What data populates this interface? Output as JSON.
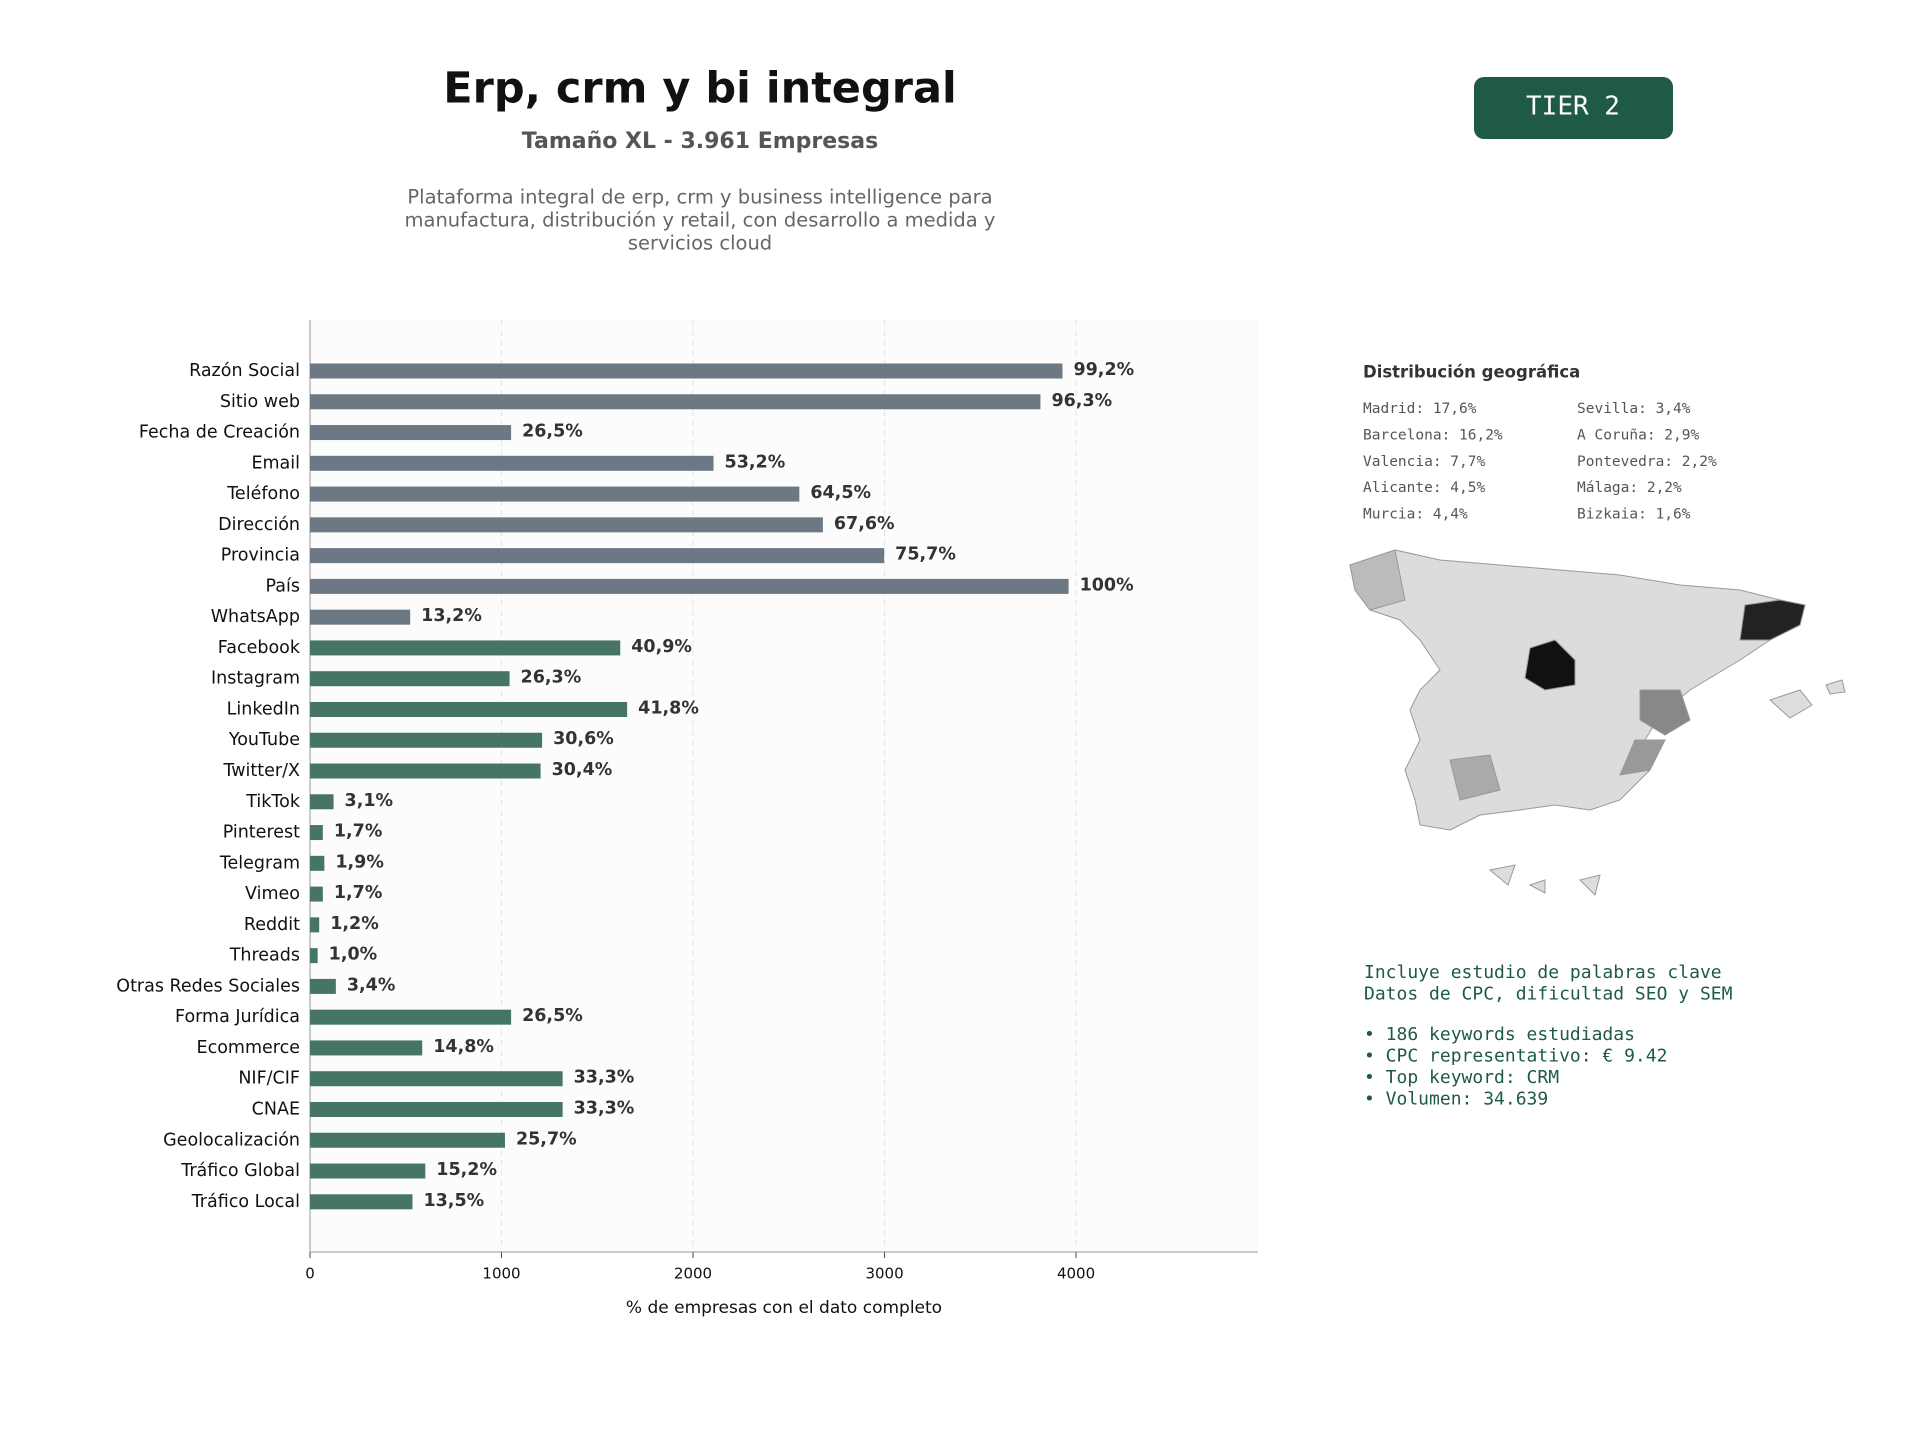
{
  "header": {
    "title": "Erp, crm y bi integral",
    "subtitle": "Tamaño XL - 3.961 Empresas",
    "description": [
      "Plataforma integral de erp, crm y business intelligence para",
      "manufactura, distribución y retail, con desarrollo a medida y",
      "servicios cloud"
    ],
    "badge": "TIER 2"
  },
  "chart_data": {
    "type": "hbar",
    "xlabel": "% de empresas con el dato completo",
    "categories": [
      "Razón Social",
      "Sitio web",
      "Fecha de Creación",
      "Email",
      "Teléfono",
      "Dirección",
      "Provincia",
      "País",
      "WhatsApp",
      "Facebook",
      "Instagram",
      "LinkedIn",
      "YouTube",
      "Twitter/X",
      "TikTok",
      "Pinterest",
      "Telegram",
      "Vimeo",
      "Reddit",
      "Threads",
      "Otras Redes Sociales",
      "Forma Jurídica",
      "Ecommerce",
      "NIF/CIF",
      "CNAE",
      "Geolocalización",
      "Tráfico Global",
      "Tráfico Local"
    ],
    "values": [
      3929,
      3814,
      1050,
      2107,
      2555,
      2678,
      2998,
      3961,
      523,
      1620,
      1042,
      1656,
      1212,
      1204,
      123,
      67,
      75,
      67,
      48,
      40,
      135,
      1050,
      586,
      1319,
      1319,
      1018,
      602,
      535
    ],
    "value_labels": [
      "99,2%",
      "96,3%",
      "26,5%",
      "53,2%",
      "64,5%",
      "67,6%",
      "75,7%",
      "100%",
      "13,2%",
      "40,9%",
      "26,3%",
      "41,8%",
      "30,6%",
      "30,4%",
      "3,1%",
      "1,7%",
      "1,9%",
      "1,7%",
      "1,2%",
      "1,0%",
      "3,4%",
      "26,5%",
      "14,8%",
      "33,3%",
      "33,3%",
      "25,7%",
      "15,2%",
      "13,5%"
    ],
    "colors": [
      "#6c7883",
      "#6c7883",
      "#6c7883",
      "#6c7883",
      "#6c7883",
      "#6c7883",
      "#6c7883",
      "#6c7883",
      "#6c7883",
      "#467563",
      "#467563",
      "#467563",
      "#467563",
      "#467563",
      "#467563",
      "#467563",
      "#467563",
      "#467563",
      "#467563",
      "#467563",
      "#467563",
      "#467563",
      "#467563",
      "#467563",
      "#467563",
      "#467563",
      "#467563",
      "#467563"
    ],
    "xlim": [
      0,
      4950
    ],
    "xticks": [
      0,
      1000,
      2000,
      3000,
      4000
    ],
    "grid": true
  },
  "geo": {
    "title": "Distribución geográfica",
    "left": [
      "Madrid: 17,6%",
      "Barcelona: 16,2%",
      "Valencia: 7,7%",
      "Alicante: 4,5%",
      "Murcia: 4,4%"
    ],
    "right": [
      "Sevilla: 3,4%",
      "A Coruña: 2,9%",
      "Pontevedra: 2,2%",
      "Málaga: 2,2%",
      "Bizkaia: 1,6%"
    ]
  },
  "keywords": {
    "intro": [
      "Incluye estudio de palabras clave",
      "Datos de CPC, dificultad SEO y SEM"
    ],
    "items": [
      "• 186 keywords estudiadas",
      "• CPC representativo: € 9.42",
      "• Top keyword: CRM",
      "• Volumen: 34.639"
    ]
  }
}
